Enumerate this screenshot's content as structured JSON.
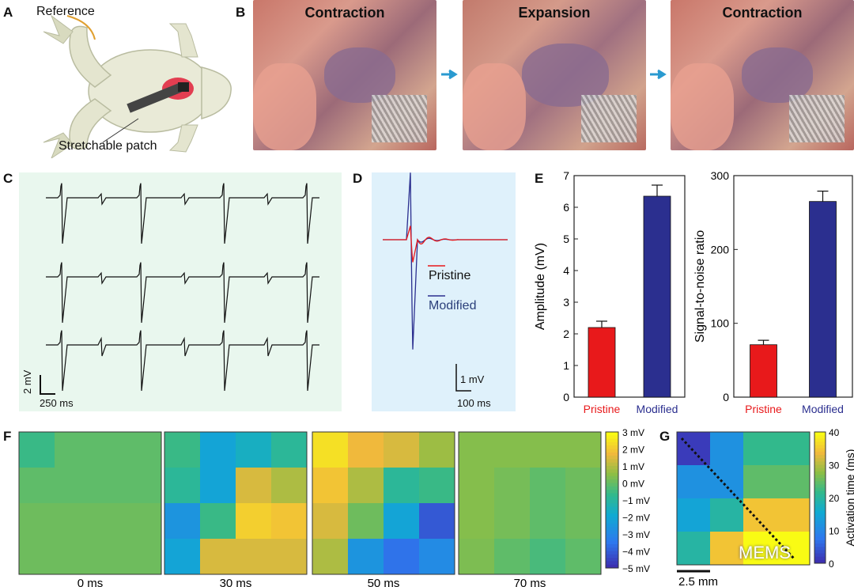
{
  "panel_labels": {
    "a": "A",
    "b": "B",
    "c": "C",
    "d": "D",
    "e": "E",
    "f": "F",
    "g": "G"
  },
  "panel_a": {
    "reference": "Reference",
    "patch": "Stretchable patch"
  },
  "panel_b": {
    "frames": [
      "Contraction",
      "Expansion",
      "Contraction"
    ]
  },
  "panel_c": {
    "scale_v": "2 mV",
    "scale_t": "250 ms"
  },
  "panel_d": {
    "legend": [
      "Pristine",
      "Modified"
    ],
    "scale_v": "1 mV",
    "scale_t": "100 ms"
  },
  "colors": {
    "pristine": "#e8191b",
    "modified": "#2b2f8f",
    "panel_c_bg": "#e9f7ee",
    "panel_d_bg": "#dff1fb"
  },
  "chart_data": [
    {
      "type": "bar",
      "categories": [
        "Pristine",
        "Modified"
      ],
      "values": [
        2.2,
        6.35
      ],
      "errors": [
        0.2,
        0.35
      ],
      "ylabel": "Amplitude (mV)",
      "ylim": [
        0,
        7
      ],
      "yticks": [
        "0",
        "1",
        "2",
        "3",
        "4",
        "5",
        "6",
        "7"
      ]
    },
    {
      "type": "bar",
      "categories": [
        "Pristine",
        "Modified"
      ],
      "values": [
        71,
        265
      ],
      "errors": [
        6,
        14
      ],
      "ylabel": "Signal-to-noise ratio",
      "ylim": [
        0,
        300
      ],
      "yticks": [
        "0",
        "100",
        "200",
        "300"
      ]
    },
    {
      "type": "heatmap",
      "frames": [
        "0 ms",
        "30 ms",
        "50 ms",
        "70 ms"
      ],
      "colorbar_ticks": [
        "3 mV",
        "2 mV",
        "1 mV",
        "0 mV",
        "−1 mV",
        "−2 mV",
        "−3 mV",
        "−4 mV",
        "−5 mV"
      ],
      "range": [
        -5,
        3
      ],
      "values": [
        [
          [
            -0.5,
            0,
            0,
            0
          ],
          [
            0,
            0,
            0,
            0
          ],
          [
            0.2,
            0.2,
            0.2,
            0.2
          ],
          [
            0.2,
            0.2,
            0.2,
            0.2
          ]
        ],
        [
          [
            -0.5,
            -2,
            -1.5,
            -0.8
          ],
          [
            -0.8,
            -2,
            1.5,
            1.0
          ],
          [
            -2.5,
            -0.5,
            2.2,
            2.0
          ],
          [
            -2,
            1.5,
            1.5,
            1.5
          ]
        ],
        [
          [
            2.5,
            1.8,
            1.5,
            0.8
          ],
          [
            2,
            1,
            -0.8,
            -0.5
          ],
          [
            1.5,
            0.2,
            -2,
            -4
          ],
          [
            1,
            -2.5,
            -3.5,
            -2.8
          ]
        ],
        [
          [
            0.5,
            0.5,
            0.5,
            0.5
          ],
          [
            0.5,
            0.3,
            0,
            0.2
          ],
          [
            0.5,
            0.3,
            0,
            0.2
          ],
          [
            0.4,
            0,
            -0.3,
            0
          ]
        ]
      ]
    },
    {
      "type": "heatmap",
      "colorbar_label": "Activation time (ms)",
      "colorbar_ticks": [
        "40",
        "30",
        "20",
        "10",
        "0"
      ],
      "range": [
        0,
        40
      ],
      "scale_bar": "2.5 mm",
      "values": [
        [
          [
            2,
            12,
            22,
            22
          ],
          [
            12,
            12,
            25,
            25
          ],
          [
            15,
            20,
            35,
            35
          ],
          [
            20,
            35,
            40,
            40
          ]
        ]
      ]
    }
  ],
  "watermark": "MEMS"
}
